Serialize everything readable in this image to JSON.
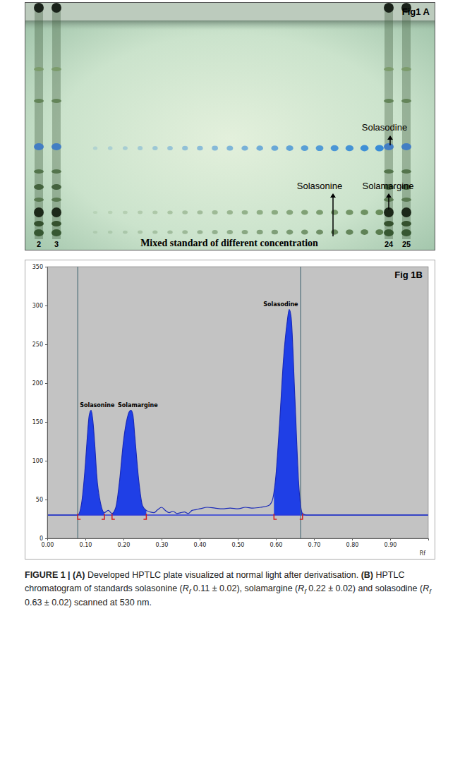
{
  "panel_a": {
    "label": "Fig1 A",
    "annotations": [
      {
        "text": "Solasodine"
      },
      {
        "text": "Solasonine"
      },
      {
        "text": "Solamargine"
      }
    ],
    "lane_labels": [
      "2",
      "3",
      "24",
      "25"
    ],
    "footer": "Mixed standard of different concentration"
  },
  "chart_data": {
    "type": "line",
    "label": "Fig 1B",
    "x_label": "Rf",
    "color": "#1a2ab8",
    "grid": false,
    "xlim": [
      0,
      1
    ],
    "ylim": [
      0,
      350
    ],
    "xticks": [
      {
        "value": 0,
        "label": "0.00"
      },
      {
        "value": 0.1,
        "label": "0.10"
      },
      {
        "value": 0.2,
        "label": "0.20"
      },
      {
        "value": 0.3,
        "label": "0.30"
      },
      {
        "value": 0.4,
        "label": "0.40"
      },
      {
        "value": 0.5,
        "label": "0.50"
      },
      {
        "value": 0.6,
        "label": "0.60"
      },
      {
        "value": 0.7,
        "label": "0.70"
      },
      {
        "value": 0.8,
        "label": "0.80"
      },
      {
        "value": 0.9,
        "label": "0.90"
      }
    ],
    "yticks": [
      0,
      50,
      100,
      150,
      200,
      250,
      300,
      350
    ],
    "x": [
      0,
      0.08,
      0.09,
      0.1,
      0.105,
      0.11,
      0.115,
      0.12,
      0.125,
      0.13,
      0.14,
      0.15,
      0.16,
      0.17,
      0.18,
      0.19,
      0.2,
      0.21,
      0.215,
      0.22,
      0.225,
      0.23,
      0.24,
      0.25,
      0.26,
      0.27,
      0.28,
      0.29,
      0.3,
      0.31,
      0.32,
      0.33,
      0.34,
      0.35,
      0.36,
      0.37,
      0.38,
      0.39,
      0.4,
      0.42,
      0.44,
      0.46,
      0.48,
      0.5,
      0.52,
      0.54,
      0.56,
      0.58,
      0.59,
      0.6,
      0.61,
      0.62,
      0.63,
      0.635,
      0.64,
      0.65,
      0.66,
      0.67,
      0.68,
      1.0
    ],
    "values": [
      30,
      30,
      45,
      95,
      130,
      158,
      165,
      150,
      118,
      80,
      45,
      33,
      36,
      32,
      40,
      75,
      125,
      155,
      163,
      165,
      158,
      130,
      75,
      42,
      36,
      34,
      33,
      37,
      40,
      36,
      33,
      35,
      32,
      33,
      34,
      32,
      36,
      37,
      38,
      40,
      39,
      38,
      39,
      38,
      40,
      39,
      40,
      42,
      48,
      80,
      150,
      230,
      280,
      295,
      285,
      180,
      70,
      32,
      30,
      30
    ],
    "baseline": 30,
    "vertical_lines": [
      0.08,
      0.665
    ],
    "peaks": [
      {
        "label": "Solasonine",
        "start": 0.08,
        "end": 0.15
      },
      {
        "label": "Solamargine",
        "start": 0.17,
        "end": 0.26
      },
      {
        "label": "Solasodine",
        "start": 0.595,
        "end": 0.67
      }
    ]
  },
  "caption": [
    {
      "text": "FIGURE 1 | ",
      "style": "bold"
    },
    {
      "text": "(A)",
      "style": "bold"
    },
    {
      "text": " Developed HPTLC plate visualized at normal light after derivatisation. ",
      "style": "normal"
    },
    {
      "text": "(B)",
      "style": "bold"
    },
    {
      "text": " HPTLC chromatogram of standards solasonine (",
      "style": "normal"
    },
    {
      "text": "R",
      "style": "italic"
    },
    {
      "text": "f",
      "style": "sub"
    },
    {
      "text": " 0.11 ± 0.02), solamargine (",
      "style": "normal"
    },
    {
      "text": "R",
      "style": "italic"
    },
    {
      "text": "f",
      "style": "sub"
    },
    {
      "text": " 0.22 ± 0.02) and solasodine (",
      "style": "normal"
    },
    {
      "text": "R",
      "style": "italic"
    },
    {
      "text": "f",
      "style": "sub"
    },
    {
      "text": " 0.63 ± 0.02) scanned at 530 nm.",
      "style": "normal"
    }
  ]
}
